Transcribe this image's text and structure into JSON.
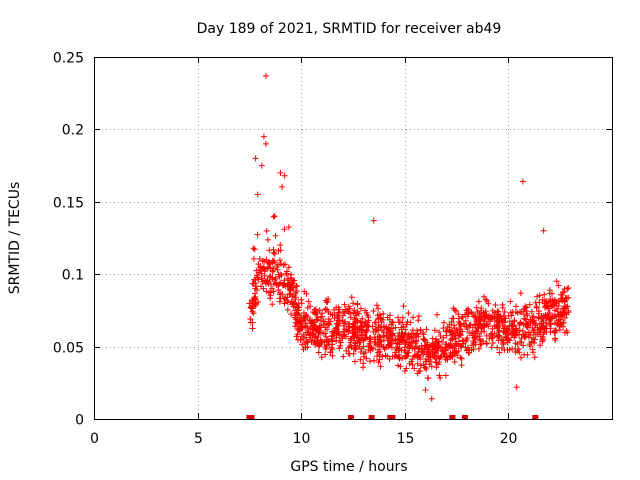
{
  "chart_data": {
    "type": "scatter",
    "title": "Day 189 of 2021, SRMTID for receiver ab49",
    "xlabel": "GPS time / hours",
    "ylabel": "SRMTID / TECUs",
    "xlim": [
      0,
      25
    ],
    "ylim": [
      0,
      0.25
    ],
    "xticks": [
      0,
      5,
      10,
      15,
      20
    ],
    "xtick_labels": [
      "0",
      "5",
      "10",
      "15",
      "20"
    ],
    "yticks": [
      0,
      0.05,
      0.1,
      0.15,
      0.2,
      0.25
    ],
    "ytick_labels": [
      "0",
      "0.05",
      "0.1",
      "0.15",
      "0.2",
      "0.25"
    ],
    "grid": true,
    "marker": "+",
    "color": "#ff0000",
    "series": [
      {
        "name": "SRMTID",
        "x_range": [
          7.5,
          22.9
        ],
        "notable_points": [
          {
            "x": 8.3,
            "y": 0.237
          },
          {
            "x": 8.2,
            "y": 0.195
          },
          {
            "x": 8.3,
            "y": 0.19
          },
          {
            "x": 7.8,
            "y": 0.18
          },
          {
            "x": 8.1,
            "y": 0.175
          },
          {
            "x": 9.0,
            "y": 0.17
          },
          {
            "x": 9.2,
            "y": 0.168
          },
          {
            "x": 7.9,
            "y": 0.155
          },
          {
            "x": 13.5,
            "y": 0.137
          },
          {
            "x": 20.7,
            "y": 0.164
          },
          {
            "x": 21.7,
            "y": 0.13
          },
          {
            "x": 16.3,
            "y": 0.014
          },
          {
            "x": 16.0,
            "y": 0.02
          },
          {
            "x": 20.4,
            "y": 0.022
          }
        ],
        "trend": [
          {
            "x": 7.6,
            "y": 0.075
          },
          {
            "x": 8.0,
            "y": 0.1
          },
          {
            "x": 8.5,
            "y": 0.1
          },
          {
            "x": 9.0,
            "y": 0.1
          },
          {
            "x": 9.5,
            "y": 0.085
          },
          {
            "x": 10.0,
            "y": 0.066
          },
          {
            "x": 11.0,
            "y": 0.062
          },
          {
            "x": 12.0,
            "y": 0.062
          },
          {
            "x": 13.0,
            "y": 0.06
          },
          {
            "x": 14.0,
            "y": 0.06
          },
          {
            "x": 15.0,
            "y": 0.052
          },
          {
            "x": 16.0,
            "y": 0.048
          },
          {
            "x": 17.0,
            "y": 0.052
          },
          {
            "x": 18.0,
            "y": 0.06
          },
          {
            "x": 19.0,
            "y": 0.068
          },
          {
            "x": 20.0,
            "y": 0.062
          },
          {
            "x": 21.0,
            "y": 0.062
          },
          {
            "x": 22.0,
            "y": 0.074
          },
          {
            "x": 22.9,
            "y": 0.075
          }
        ],
        "spread": 0.022
      }
    ],
    "gap_markers_x": [
      7.5,
      7.6,
      12.4,
      13.4,
      14.3,
      14.4,
      17.3,
      17.9,
      21.3
    ]
  }
}
